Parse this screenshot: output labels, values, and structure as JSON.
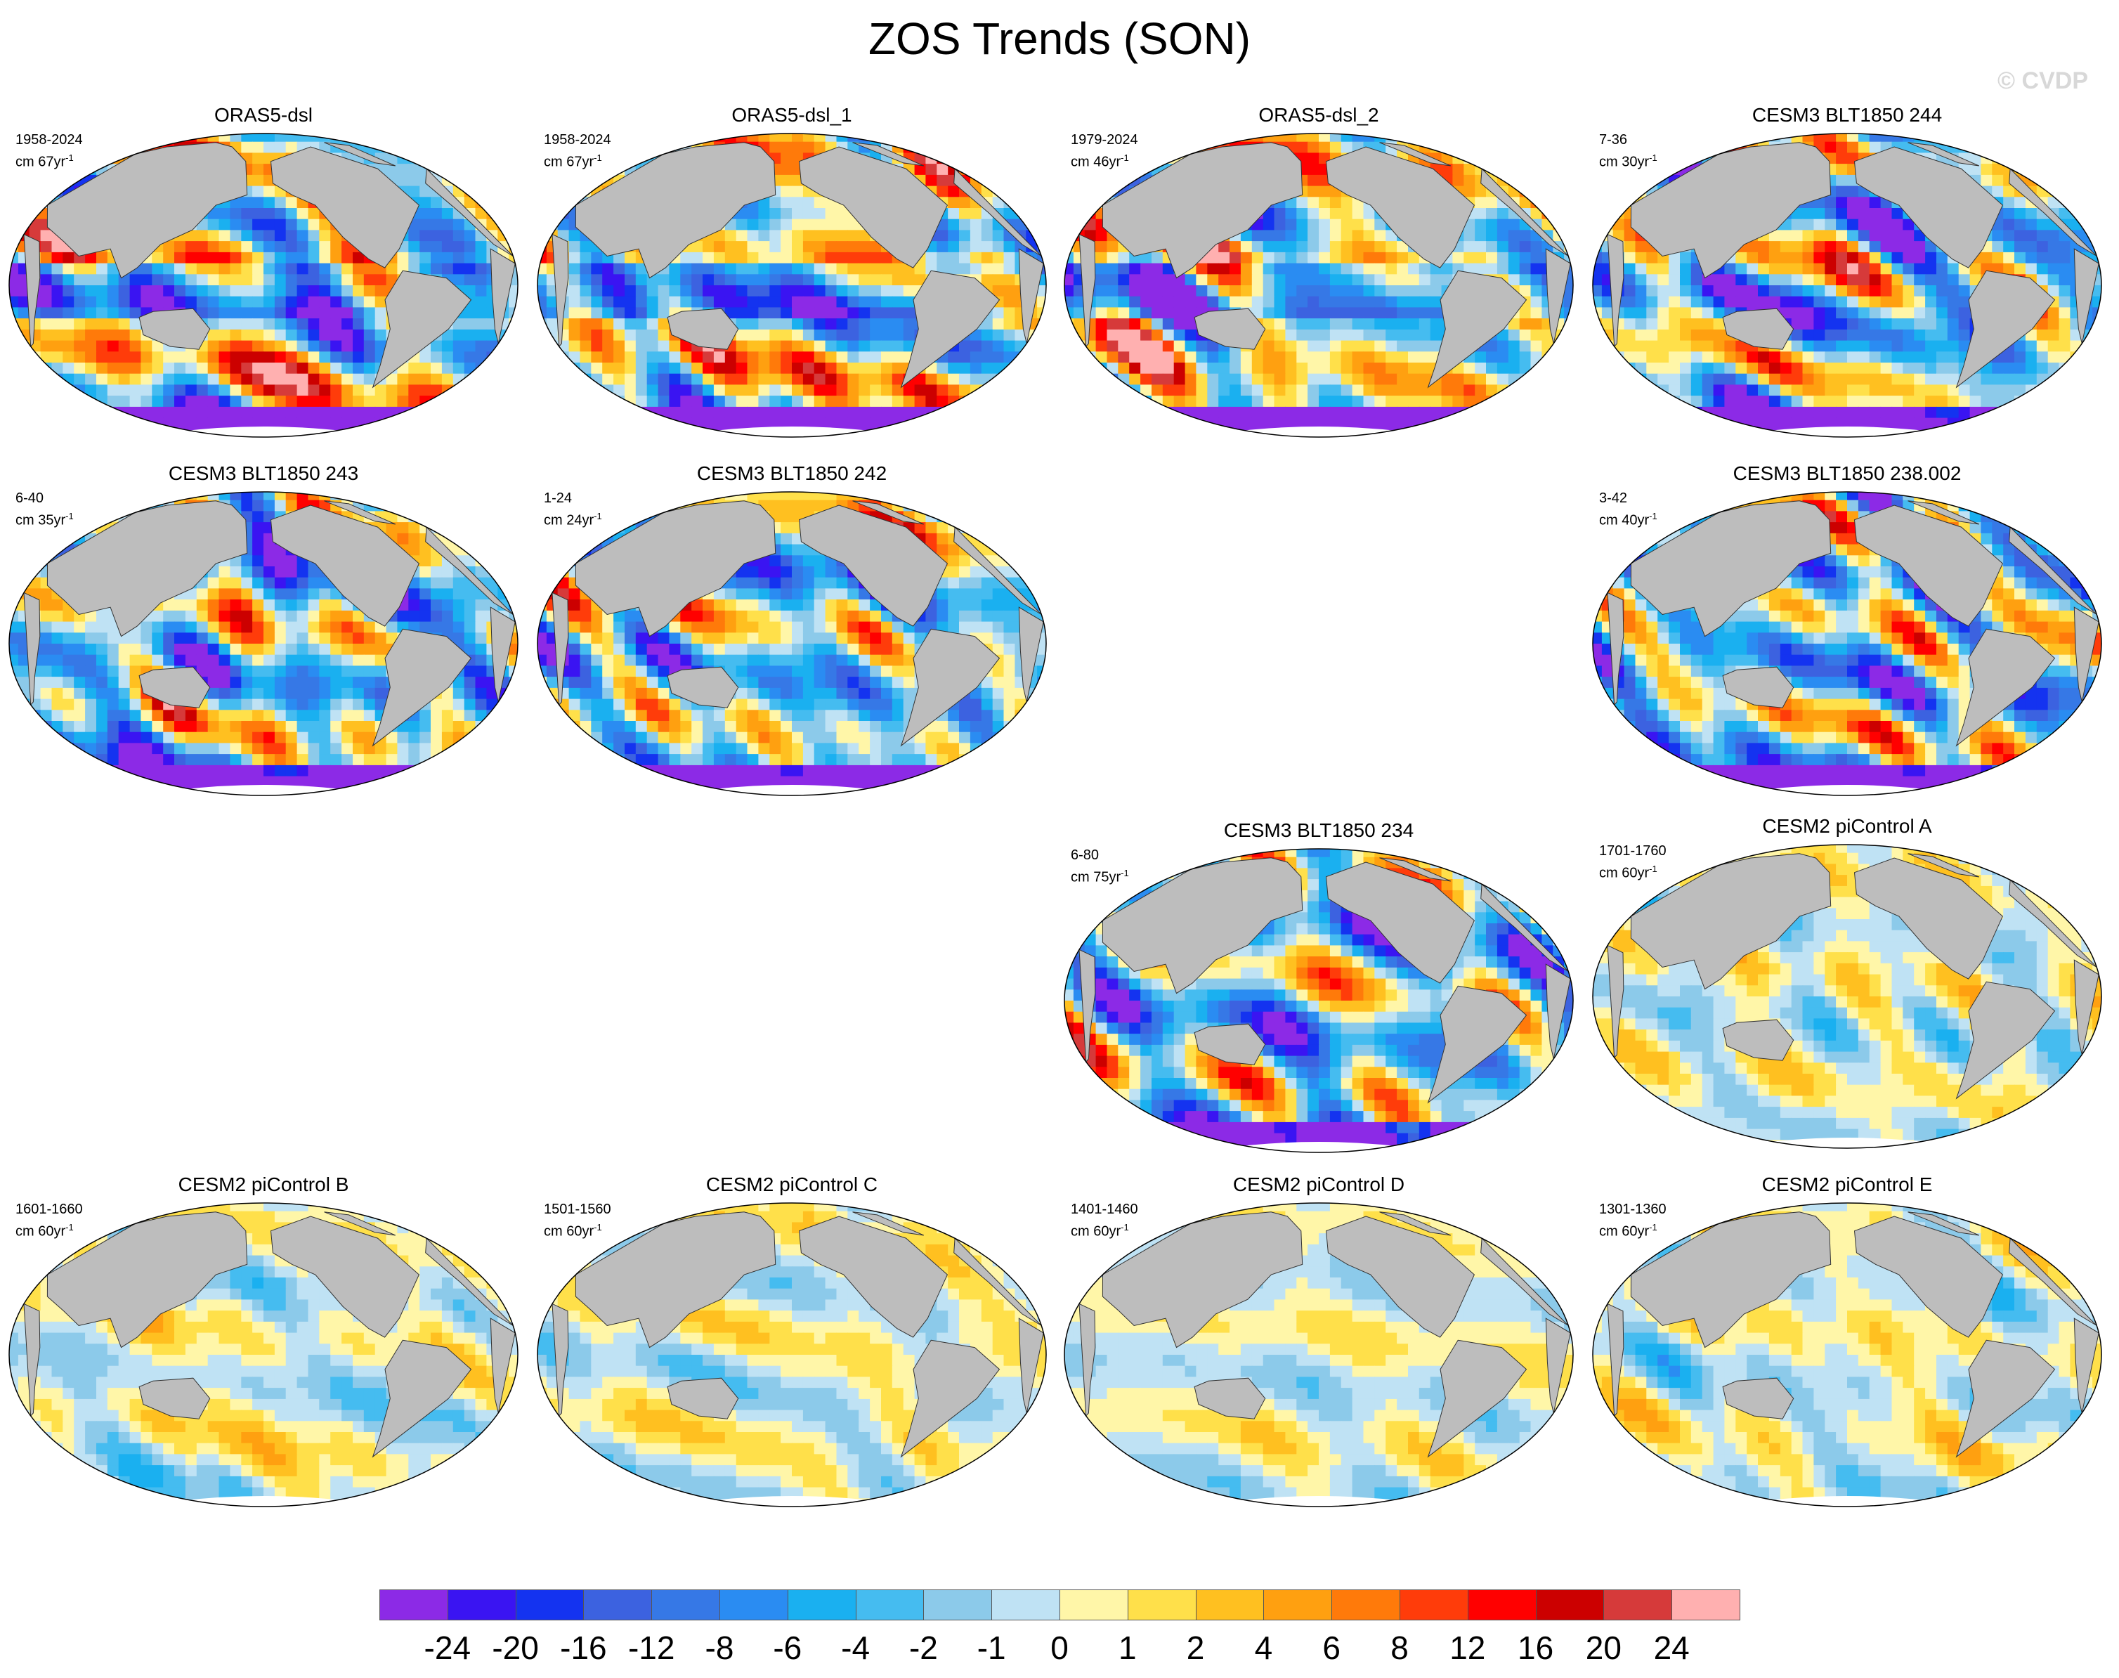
{
  "title": "ZOS Trends (SON)",
  "watermark": "© CVDP",
  "colors": {
    "land": "#bdbdbd",
    "palette": [
      "#8c2ae6",
      "#3a14f2",
      "#1433f0",
      "#3c62e0",
      "#3678e6",
      "#2a8cf2",
      "#1ab0f0",
      "#45bcf0",
      "#8ccaea",
      "#bfe2f4",
      "#fff6a8",
      "#ffe04a",
      "#ffc020",
      "#ffa010",
      "#ff7a0a",
      "#ff3c0a",
      "#ff0000",
      "#cc0000",
      "#d63a3a",
      "#ffb0b0"
    ]
  },
  "colorbar": {
    "labels": [
      "-24",
      "-20",
      "-16",
      "-12",
      "-8",
      "-6",
      "-4",
      "-2",
      "-1",
      "0",
      "1",
      "2",
      "4",
      "6",
      "8",
      "12",
      "16",
      "20",
      "24"
    ]
  },
  "panels": [
    {
      "id": "p1",
      "title": "ORAS5-dsl",
      "years": "1958-2024",
      "unit": "cm 67yr",
      "exp": "-1",
      "style": "reanalysis"
    },
    {
      "id": "p2",
      "title": "ORAS5-dsl_1",
      "years": "1958-2024",
      "unit": "cm 67yr",
      "exp": "-1",
      "style": "reanalysis"
    },
    {
      "id": "p3",
      "title": "ORAS5-dsl_2",
      "years": "1979-2024",
      "unit": "cm 46yr",
      "exp": "-1",
      "style": "reanalysis"
    },
    {
      "id": "p4",
      "title": "CESM3 BLT1850 244",
      "years": "7-36",
      "unit": "cm 30yr",
      "exp": "-1",
      "style": "model"
    },
    {
      "id": "p5",
      "title": "CESM3 BLT1850 243",
      "years": "6-40",
      "unit": "cm 35yr",
      "exp": "-1",
      "style": "model"
    },
    {
      "id": "p6",
      "title": "CESM3 BLT1850 242",
      "years": "1-24",
      "unit": "cm 24yr",
      "exp": "-1",
      "style": "model"
    },
    {
      "id": "p7",
      "title": "CESM3 BLT1850 238.002",
      "years": "3-42",
      "unit": "cm 40yr",
      "exp": "-1",
      "style": "model"
    },
    {
      "id": "p8",
      "title": "CESM3 BLT1850 234",
      "years": "6-80",
      "unit": "cm 75yr",
      "exp": "-1",
      "style": "model"
    },
    {
      "id": "p9",
      "title": "CESM2 piControl A",
      "years": "1701-1760",
      "unit": "cm 60yr",
      "exp": "-1",
      "style": "control"
    },
    {
      "id": "p10",
      "title": "CESM2 piControl B",
      "years": "1601-1660",
      "unit": "cm 60yr",
      "exp": "-1",
      "style": "control"
    },
    {
      "id": "p11",
      "title": "CESM2 piControl C",
      "years": "1501-1560",
      "unit": "cm 60yr",
      "exp": "-1",
      "style": "control"
    },
    {
      "id": "p12",
      "title": "CESM2 piControl D",
      "years": "1401-1460",
      "unit": "cm 60yr",
      "exp": "-1",
      "style": "control"
    },
    {
      "id": "p13",
      "title": "CESM2 piControl E",
      "years": "1301-1360",
      "unit": "cm 60yr",
      "exp": "-1",
      "style": "control"
    }
  ]
}
